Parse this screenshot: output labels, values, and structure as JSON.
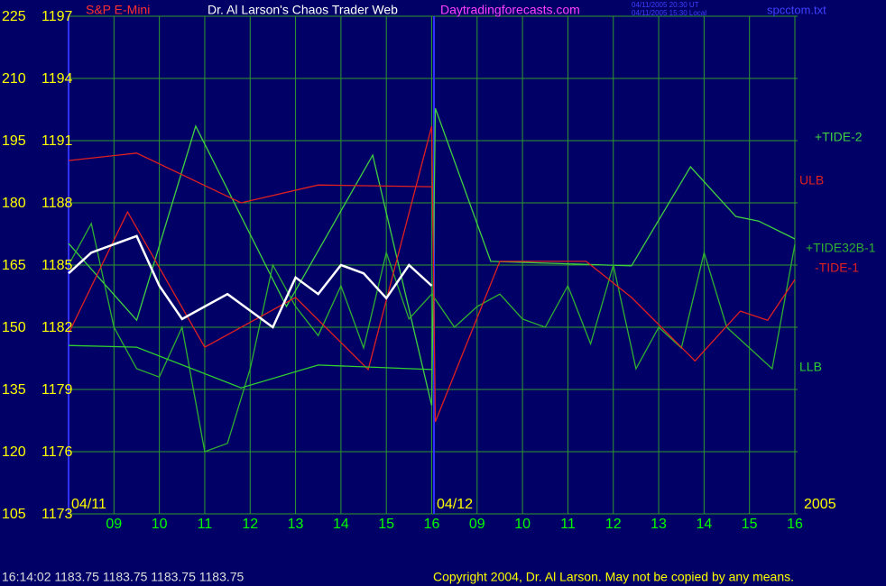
{
  "chart_data": {
    "type": "line",
    "instrument": "S&P E-Mini",
    "title": "Dr. Al Larson's Chaos Trader Web",
    "site": "Daytradingforecasts.com",
    "timestamps": [
      "04/11/2005 20:30 UT",
      "04/11/2005 15:30 Local"
    ],
    "file": "spcctom.txt",
    "date_labels": [
      "04/11",
      "04/12",
      "2005"
    ],
    "grid": true,
    "xlim": [
      0,
      16
    ],
    "xticks": [
      {
        "value": 1,
        "label": "09"
      },
      {
        "value": 2,
        "label": "10"
      },
      {
        "value": 3,
        "label": "11"
      },
      {
        "value": 4,
        "label": "12"
      },
      {
        "value": 5,
        "label": "13"
      },
      {
        "value": 6,
        "label": "14"
      },
      {
        "value": 7,
        "label": "15"
      },
      {
        "value": 8,
        "label": "16"
      },
      {
        "value": 9,
        "label": "09"
      },
      {
        "value": 10,
        "label": "10"
      },
      {
        "value": 11,
        "label": "11"
      },
      {
        "value": 12,
        "label": "12"
      },
      {
        "value": 13,
        "label": "13"
      },
      {
        "value": 14,
        "label": "14"
      },
      {
        "value": 15,
        "label": "15"
      },
      {
        "value": 16,
        "label": "16"
      }
    ],
    "ylim": [
      105,
      225
    ],
    "yticks": [
      105,
      120,
      135,
      150,
      165,
      180,
      195,
      210,
      225
    ],
    "y2lim": [
      1173,
      1197
    ],
    "y2ticks": [
      1173,
      1176,
      1179,
      1182,
      1185,
      1188,
      1191,
      1194,
      1197
    ],
    "series": [
      {
        "name": "+TIDE-2",
        "color": "#40d040",
        "x": [
          0,
          1.5,
          2.8,
          4.8,
          6.7,
          8,
          8.08,
          9.3,
          12.4,
          13.7,
          14.7,
          15.2,
          16
        ],
        "values": [
          170.2,
          151.7,
          198.5,
          155.0,
          191.5,
          131.1,
          202.8,
          165.9,
          164.8,
          188.7,
          176.7,
          175.6,
          171.3
        ]
      },
      {
        "name": "ULB",
        "color": "#e02020",
        "x": [
          0,
          1.5,
          3.8,
          5.5,
          8
        ],
        "values": [
          190.2,
          192.0,
          180.0,
          184.3,
          183.9
        ]
      },
      {
        "name": "+TIDE32B-1",
        "color": "#30b030",
        "x": [
          0,
          0.5,
          1,
          1.5,
          2,
          2.5,
          3,
          3.5,
          4,
          4.5,
          5,
          5.5,
          6,
          6.5,
          7,
          7.5,
          8,
          8.5,
          9,
          9.5,
          10,
          10.5,
          11,
          11.5,
          12,
          12.5,
          13,
          13.5,
          14,
          14.5,
          15,
          15.5,
          16
        ],
        "values": [
          165,
          175,
          150,
          140,
          138,
          150,
          120,
          122,
          140,
          165,
          155,
          148,
          160,
          145,
          168,
          152,
          158,
          150,
          155,
          158,
          152,
          150,
          160,
          146,
          165,
          140,
          150,
          145,
          168,
          150,
          145,
          140,
          170
        ]
      },
      {
        "name": "-TIDE-1",
        "color": "#e02020",
        "x": [
          0,
          1.3,
          3,
          5,
          6.6,
          8,
          8.08,
          9.5,
          11.4,
          12.4,
          13.8,
          14.8,
          15.4,
          16
        ],
        "values": [
          148.5,
          177.8,
          145.2,
          157.2,
          139.8,
          198.5,
          127.2,
          165.9,
          165.9,
          157.2,
          141.9,
          153.9,
          151.7,
          161.5
        ]
      },
      {
        "name": "LLB",
        "color": "#30d030",
        "x": [
          0,
          1.5,
          3.8,
          5.5,
          8
        ],
        "values": [
          145.6,
          145.2,
          135.4,
          140.9,
          139.8
        ]
      },
      {
        "color": "#ffffff",
        "x": [
          0,
          0.5,
          1,
          1.5,
          2,
          2.5,
          3,
          3.5,
          4,
          4.5,
          5,
          5.5,
          6,
          6.5,
          7,
          7.5,
          8
        ],
        "values": [
          163,
          168,
          170,
          172,
          160,
          152,
          155,
          158,
          154,
          150,
          162,
          158,
          165,
          163,
          157,
          165,
          160
        ]
      }
    ]
  },
  "footer": {
    "quote": "16:14:02  1183.75 1183.75 1183.75 1183.75",
    "copyright": "Copyright 2004, Dr. Al Larson. May not be copied by any means."
  }
}
